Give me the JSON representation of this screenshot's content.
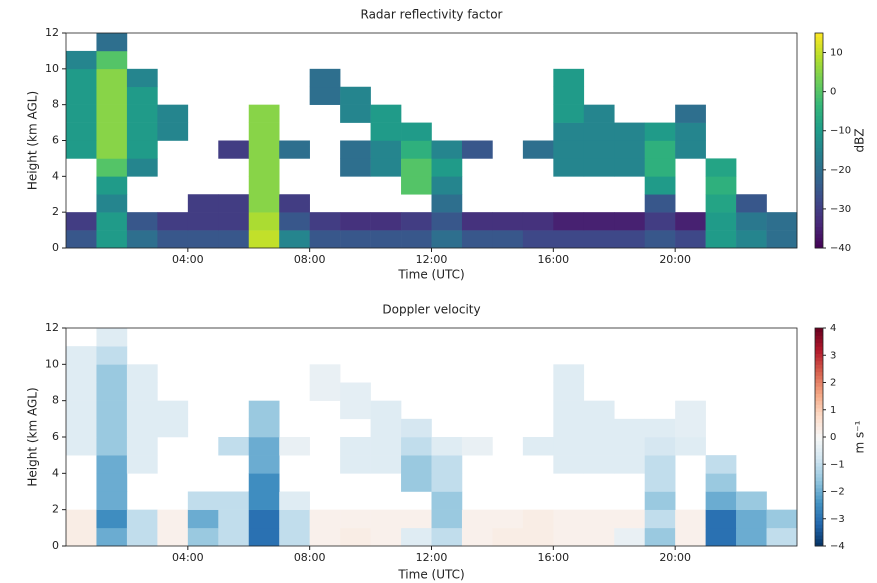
{
  "chart_data": [
    {
      "type": "heatmap",
      "title": "Radar reflectivity factor",
      "xlabel": "Time (UTC)",
      "ylabel": "Height (km AGL)",
      "colorbar_label": "dBZ",
      "colormap": "viridis",
      "xlim": [
        0,
        24
      ],
      "ylim": [
        0,
        12
      ],
      "zlim": [
        -40,
        15
      ],
      "xticks": [
        {
          "value": 4,
          "label": "04:00"
        },
        {
          "value": 8,
          "label": "08:00"
        },
        {
          "value": 12,
          "label": "12:00"
        },
        {
          "value": 16,
          "label": "16:00"
        },
        {
          "value": 20,
          "label": "20:00"
        }
      ],
      "yticks": [
        0,
        2,
        4,
        6,
        8,
        10,
        12
      ],
      "zticks": [
        {
          "value": -40,
          "label": "−40"
        },
        {
          "value": -30,
          "label": "−30"
        },
        {
          "value": -20,
          "label": "−20"
        },
        {
          "value": -10,
          "label": "−10"
        },
        0,
        10
      ],
      "x": [
        0.5,
        1.5,
        2.5,
        3.5,
        4.5,
        5.5,
        6.5,
        7.5,
        8.5,
        9.5,
        10.5,
        11.5,
        12.5,
        13.5,
        14.5,
        15.5,
        16.5,
        17.5,
        18.5,
        19.5,
        20.5,
        21.5,
        22.5,
        23.5
      ],
      "y": [
        0.5,
        1.5,
        2.5,
        3.5,
        4.5,
        5.5,
        6.5,
        7.5,
        8.5,
        9.5,
        10.5,
        11.5
      ],
      "values": [
        [
          -25,
          -10,
          -20,
          -25,
          -25,
          -25,
          10,
          -15,
          -25,
          -25,
          -25,
          -25,
          -20,
          -25,
          -25,
          -28,
          -28,
          -28,
          -28,
          -25,
          -28,
          -10,
          -15,
          -20
        ],
        [
          -30,
          -10,
          -25,
          -30,
          -30,
          -30,
          8,
          -25,
          -30,
          -32,
          -32,
          -30,
          -25,
          -32,
          -32,
          -32,
          -35,
          -35,
          -35,
          -30,
          -35,
          -10,
          -18,
          -20
        ],
        [
          null,
          -15,
          null,
          null,
          -30,
          -30,
          5,
          -30,
          null,
          null,
          null,
          null,
          -20,
          null,
          null,
          null,
          null,
          null,
          null,
          -25,
          null,
          -8,
          -25,
          null
        ],
        [
          null,
          -10,
          null,
          null,
          null,
          null,
          5,
          null,
          null,
          null,
          null,
          0,
          -15,
          null,
          null,
          null,
          null,
          null,
          null,
          -10,
          null,
          -5,
          null,
          null
        ],
        [
          null,
          0,
          -15,
          null,
          null,
          null,
          5,
          null,
          null,
          -20,
          -15,
          0,
          -10,
          null,
          null,
          null,
          -15,
          -15,
          -15,
          -5,
          null,
          -8,
          null,
          null
        ],
        [
          -10,
          5,
          -10,
          null,
          null,
          -30,
          5,
          -20,
          null,
          -20,
          -15,
          -5,
          -15,
          -25,
          null,
          -20,
          -15,
          -15,
          -15,
          -5,
          -15,
          null,
          null,
          null
        ],
        [
          -10,
          5,
          -10,
          -15,
          null,
          null,
          5,
          null,
          null,
          null,
          -10,
          -10,
          null,
          null,
          null,
          null,
          -15,
          -15,
          -15,
          -10,
          -15,
          null,
          null,
          null
        ],
        [
          -10,
          5,
          -10,
          -15,
          null,
          null,
          5,
          null,
          null,
          -15,
          -10,
          null,
          null,
          null,
          null,
          null,
          -10,
          -15,
          null,
          null,
          -20,
          null,
          null,
          null
        ],
        [
          -10,
          5,
          -10,
          null,
          null,
          null,
          null,
          null,
          -20,
          -15,
          null,
          null,
          null,
          null,
          null,
          null,
          -10,
          null,
          null,
          null,
          null,
          null,
          null,
          null
        ],
        [
          -10,
          5,
          -15,
          null,
          null,
          null,
          null,
          null,
          -20,
          null,
          null,
          null,
          null,
          null,
          null,
          null,
          -10,
          null,
          null,
          null,
          null,
          null,
          null,
          null
        ],
        [
          -15,
          0,
          null,
          null,
          null,
          null,
          null,
          null,
          null,
          null,
          null,
          null,
          null,
          null,
          null,
          null,
          null,
          null,
          null,
          null,
          null,
          null,
          null,
          null
        ],
        [
          null,
          -20,
          null,
          null,
          null,
          null,
          null,
          null,
          null,
          null,
          null,
          null,
          null,
          null,
          null,
          null,
          null,
          null,
          null,
          null,
          null,
          null,
          null,
          null
        ]
      ]
    },
    {
      "type": "heatmap",
      "title": "Doppler velocity",
      "xlabel": "Time (UTC)",
      "ylabel": "Height (km AGL)",
      "colorbar_label": "m s⁻¹",
      "colormap": "RdBu_r",
      "xlim": [
        0,
        24
      ],
      "ylim": [
        0,
        12
      ],
      "zlim": [
        -4,
        4
      ],
      "xticks": [
        {
          "value": 4,
          "label": "04:00"
        },
        {
          "value": 8,
          "label": "08:00"
        },
        {
          "value": 12,
          "label": "12:00"
        },
        {
          "value": 16,
          "label": "16:00"
        },
        {
          "value": 20,
          "label": "20:00"
        }
      ],
      "yticks": [
        0,
        2,
        4,
        6,
        8,
        10,
        12
      ],
      "zticks": [
        {
          "value": -4,
          "label": "−4"
        },
        {
          "value": -3,
          "label": "−3"
        },
        {
          "value": -2,
          "label": "−2"
        },
        {
          "value": -1,
          "label": "−1"
        },
        0,
        1,
        2,
        3,
        4
      ],
      "x": [
        0.5,
        1.5,
        2.5,
        3.5,
        4.5,
        5.5,
        6.5,
        7.5,
        8.5,
        9.5,
        10.5,
        11.5,
        12.5,
        13.5,
        14.5,
        15.5,
        16.5,
        17.5,
        18.5,
        19.5,
        20.5,
        21.5,
        22.5,
        23.5
      ],
      "y": [
        0.5,
        1.5,
        2.5,
        3.5,
        4.5,
        5.5,
        6.5,
        7.5,
        8.5,
        9.5,
        10.5,
        11.5
      ],
      "values": [
        [
          0.3,
          -2,
          -1,
          0.2,
          -1.5,
          -1,
          -3,
          -1,
          0.2,
          0.3,
          0.2,
          -0.5,
          -1,
          0.2,
          0.3,
          0.3,
          0.2,
          0.2,
          -0.3,
          -1.5,
          0.2,
          -3,
          -2,
          -1
        ],
        [
          0.3,
          -2.5,
          -1,
          0.2,
          -2,
          -1,
          -3,
          -1,
          0.2,
          0.2,
          0.2,
          0.2,
          -1.5,
          0.2,
          0.2,
          0.3,
          0.2,
          0.2,
          0.2,
          -1,
          0.2,
          -3,
          -2,
          -1.5
        ],
        [
          null,
          -2,
          null,
          null,
          -1,
          -1,
          -2.5,
          -0.5,
          null,
          null,
          null,
          null,
          -1.5,
          null,
          null,
          null,
          null,
          null,
          null,
          -1.5,
          null,
          -2,
          -1.5,
          null
        ],
        [
          null,
          -2,
          null,
          null,
          null,
          null,
          -2.5,
          null,
          null,
          null,
          null,
          -1.5,
          -1,
          null,
          null,
          null,
          null,
          null,
          null,
          -1,
          null,
          -1.5,
          null,
          null
        ],
        [
          null,
          -2,
          -0.5,
          null,
          null,
          null,
          -2,
          null,
          null,
          -0.5,
          -0.5,
          -1.5,
          -1,
          null,
          null,
          null,
          -0.5,
          -0.5,
          -0.5,
          -1,
          null,
          -1,
          null,
          null
        ],
        [
          -0.5,
          -1.5,
          -0.5,
          null,
          null,
          -1,
          -2,
          -0.3,
          null,
          -0.5,
          -0.5,
          -1,
          -0.5,
          -0.3,
          null,
          -0.5,
          -0.5,
          -0.5,
          -0.5,
          -0.7,
          -0.5,
          null,
          null,
          null
        ],
        [
          -0.5,
          -1.5,
          -0.5,
          -0.5,
          null,
          null,
          -1.5,
          null,
          null,
          null,
          -0.5,
          -0.7,
          null,
          null,
          null,
          null,
          -0.5,
          -0.5,
          -0.5,
          -0.5,
          -0.4,
          null,
          null,
          null
        ],
        [
          -0.5,
          -1.5,
          -0.5,
          -0.5,
          null,
          null,
          -1.5,
          null,
          null,
          -0.4,
          -0.5,
          null,
          null,
          null,
          null,
          null,
          -0.5,
          -0.5,
          null,
          null,
          -0.4,
          null,
          null,
          null
        ],
        [
          -0.5,
          -1.5,
          -0.5,
          null,
          null,
          null,
          null,
          null,
          -0.3,
          -0.4,
          null,
          null,
          null,
          null,
          null,
          null,
          -0.5,
          null,
          null,
          null,
          null,
          null,
          null,
          null
        ],
        [
          -0.5,
          -1.5,
          -0.5,
          null,
          null,
          null,
          null,
          null,
          -0.3,
          null,
          null,
          null,
          null,
          null,
          null,
          null,
          -0.5,
          null,
          null,
          null,
          null,
          null,
          null,
          null
        ],
        [
          -0.5,
          -1,
          null,
          null,
          null,
          null,
          null,
          null,
          null,
          null,
          null,
          null,
          null,
          null,
          null,
          null,
          null,
          null,
          null,
          null,
          null,
          null,
          null,
          null
        ],
        [
          null,
          -0.5,
          null,
          null,
          null,
          null,
          null,
          null,
          null,
          null,
          null,
          null,
          null,
          null,
          null,
          null,
          null,
          null,
          null,
          null,
          null,
          null,
          null,
          null
        ]
      ]
    }
  ]
}
